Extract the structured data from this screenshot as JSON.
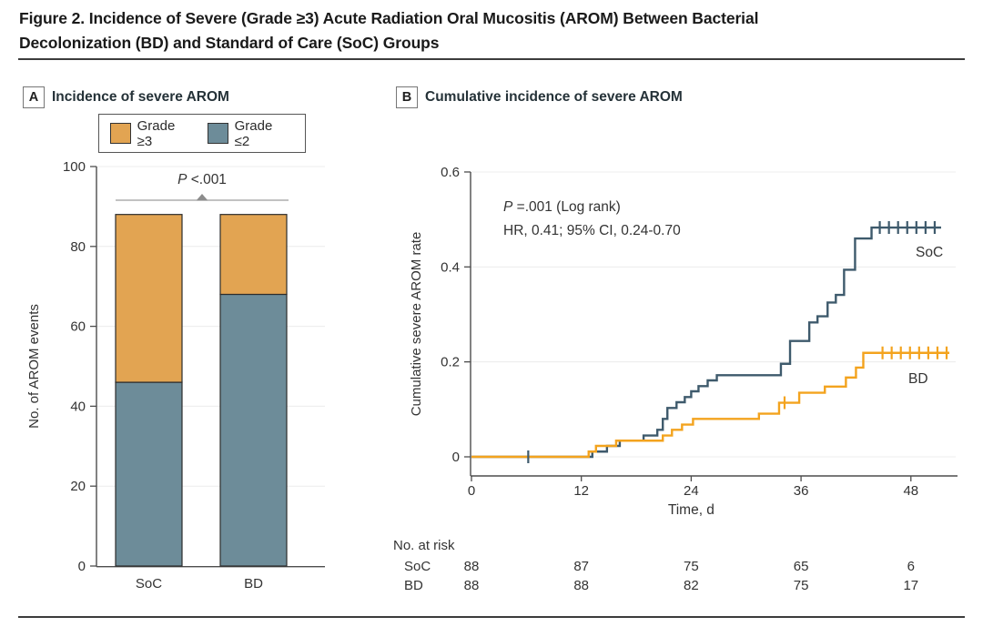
{
  "figure": {
    "title_line1": "Figure 2. Incidence of Severe (Grade ≥3) Acute Radiation Oral Mucositis (AROM) Between Bacterial",
    "title_line2": "Decolonization (BD) and Standard of Care (SoC) Groups"
  },
  "panel_a": {
    "label": "A",
    "title": "Incidence of severe AROM",
    "p_italic": "P",
    "p_rest": " <.001"
  },
  "panel_b": {
    "label": "B",
    "title": "Cumulative incidence of severe AROM",
    "p_italic": "P",
    "p_rest": " =.001 (Log rank)",
    "hr_line": "HR, 0.41; 95% CI, 0.24-0.70"
  },
  "colors": {
    "orange_fill": "#E2A452",
    "orange_curve": "#F3A31E",
    "teal_fill": "#6D8C99",
    "slate_curve": "#3E5A6C",
    "bar_border": "#2C2C2C",
    "axis": "#4D4D4D",
    "grid": "#ECECEC",
    "bracket": "#9E9E9E",
    "text": "#333333"
  },
  "chart_data": [
    {
      "panel": "A",
      "type": "bar",
      "stacked": true,
      "title": "Incidence of severe AROM",
      "categories": [
        "SoC",
        "BD"
      ],
      "series": [
        {
          "name": "Grade ≤2",
          "values": [
            46,
            68
          ],
          "color": "#6D8C99"
        },
        {
          "name": "Grade ≥3",
          "values": [
            42,
            20
          ],
          "color": "#E2A452"
        }
      ],
      "totals": [
        88,
        88
      ],
      "ylabel": "No. of AROM events",
      "ylim": [
        0,
        100
      ],
      "yticks": [
        0,
        20,
        40,
        60,
        80,
        100
      ],
      "annotation": "P <.001",
      "legend": [
        {
          "label": "Grade ≥3",
          "color": "#E2A452"
        },
        {
          "label": "Grade ≤2",
          "color": "#6D8C99"
        }
      ]
    },
    {
      "panel": "B",
      "type": "line",
      "subtype": "kaplan-meier-step",
      "title": "Cumulative incidence of severe AROM",
      "xlabel": "Time, d",
      "ylabel": "Cumulative severe AROM rate",
      "xlim": [
        0,
        53
      ],
      "ylim": [
        0,
        0.6
      ],
      "xticks": [
        0,
        12,
        24,
        36,
        48
      ],
      "yticks": [
        0,
        0.2,
        0.4,
        0.6
      ],
      "annotation_line1": "P =.001 (Log rank)",
      "annotation_line2": "HR, 0.41; 95% CI, 0.24-0.70",
      "series": [
        {
          "name": "SoC",
          "color": "#3E5A6C",
          "end_day": 51.3,
          "final_rate": 0.483,
          "steps": [
            [
              13.2,
              0.011
            ],
            [
              14.8,
              0.023
            ],
            [
              16.2,
              0.034
            ],
            [
              18.8,
              0.045
            ],
            [
              20.3,
              0.057
            ],
            [
              20.9,
              0.08
            ],
            [
              21.4,
              0.103
            ],
            [
              22.4,
              0.115
            ],
            [
              23.3,
              0.126
            ],
            [
              24.0,
              0.138
            ],
            [
              24.8,
              0.149
            ],
            [
              25.8,
              0.161
            ],
            [
              26.8,
              0.172
            ],
            [
              33.8,
              0.196
            ],
            [
              34.8,
              0.244
            ],
            [
              36.9,
              0.283
            ],
            [
              37.8,
              0.296
            ],
            [
              38.9,
              0.325
            ],
            [
              39.8,
              0.341
            ],
            [
              40.7,
              0.394
            ],
            [
              41.9,
              0.46
            ],
            [
              43.7,
              0.483
            ]
          ],
          "censors": [
            [
              6.2,
              0
            ],
            [
              44.6,
              0.483
            ],
            [
              45.6,
              0.483
            ],
            [
              46.6,
              0.483
            ],
            [
              47.6,
              0.483
            ],
            [
              48.6,
              0.483
            ],
            [
              49.6,
              0.483
            ],
            [
              50.6,
              0.483
            ]
          ]
        },
        {
          "name": "BD",
          "color": "#F3A31E",
          "end_day": 52.2,
          "final_rate": 0.219,
          "steps": [
            [
              12.8,
              0.011
            ],
            [
              13.6,
              0.023
            ],
            [
              15.8,
              0.034
            ],
            [
              20.9,
              0.045
            ],
            [
              21.9,
              0.057
            ],
            [
              23.0,
              0.068
            ],
            [
              24.2,
              0.08
            ],
            [
              31.4,
              0.091
            ],
            [
              33.6,
              0.114
            ],
            [
              35.8,
              0.135
            ],
            [
              38.6,
              0.148
            ],
            [
              40.9,
              0.167
            ],
            [
              42.0,
              0.188
            ],
            [
              42.8,
              0.219
            ]
          ],
          "censors": [
            [
              34.2,
              0.114
            ],
            [
              44.9,
              0.219
            ],
            [
              45.9,
              0.219
            ],
            [
              46.9,
              0.219
            ],
            [
              47.9,
              0.219
            ],
            [
              48.9,
              0.219
            ],
            [
              49.9,
              0.219
            ],
            [
              50.9,
              0.219
            ],
            [
              51.9,
              0.219
            ]
          ]
        }
      ],
      "risk_table": {
        "label": "No. at risk",
        "times": [
          0,
          12,
          24,
          36,
          48
        ],
        "rows": [
          {
            "name": "SoC",
            "values": [
              88,
              87,
              75,
              65,
              6
            ]
          },
          {
            "name": "BD",
            "values": [
              88,
              88,
              82,
              75,
              17
            ]
          }
        ]
      }
    }
  ]
}
